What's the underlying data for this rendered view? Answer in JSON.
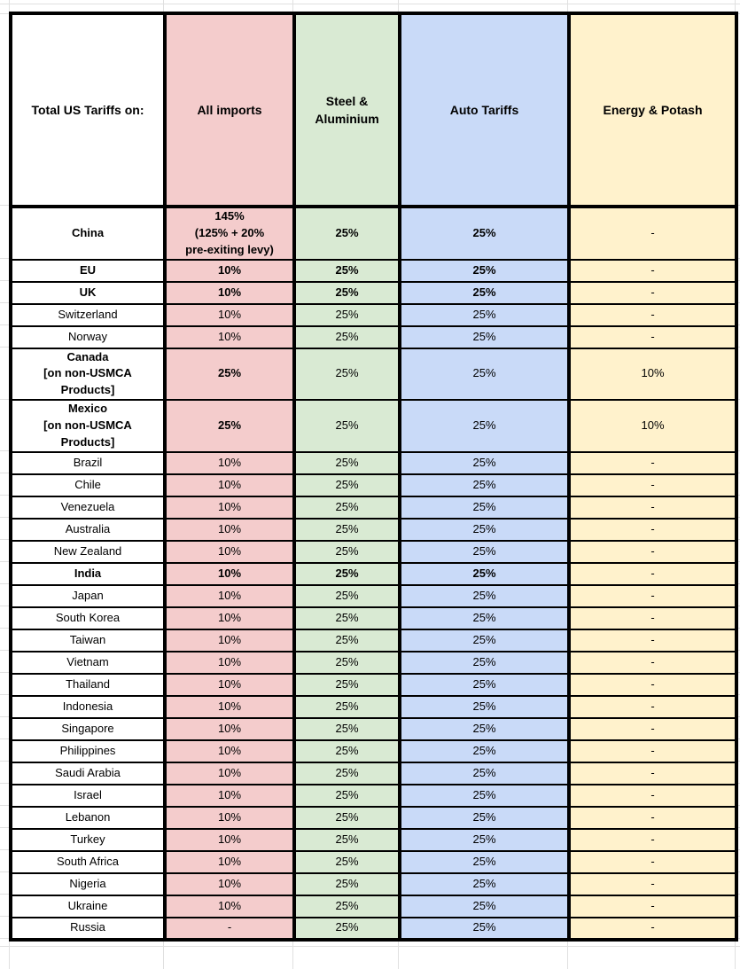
{
  "table": {
    "header": {
      "col0": "Total US Tariffs on:",
      "columns": [
        {
          "id": "all_imports",
          "label": "All imports",
          "color": "#f4cccc"
        },
        {
          "id": "steel",
          "label": "Steel & Aluminium",
          "color": "#d9ead3"
        },
        {
          "id": "auto",
          "label": "Auto Tariffs",
          "color": "#c9daf8"
        },
        {
          "id": "energy",
          "label": "Energy & Potash",
          "color": "#fff2cc"
        }
      ]
    },
    "rows": [
      {
        "country": "China",
        "all_imports": "145%\n(125% + 20%\npre-exiting levy)",
        "steel": "25%",
        "auto": "25%",
        "energy": "-",
        "bold_cols": [
          "country",
          "all_imports",
          "steel",
          "auto"
        ]
      },
      {
        "country": "EU",
        "all_imports": "10%",
        "steel": "25%",
        "auto": "25%",
        "energy": "-",
        "bold_cols": [
          "country",
          "all_imports",
          "steel",
          "auto"
        ]
      },
      {
        "country": "UK",
        "all_imports": "10%",
        "steel": "25%",
        "auto": "25%",
        "energy": "-",
        "bold_cols": [
          "country",
          "all_imports",
          "steel",
          "auto"
        ]
      },
      {
        "country": "Switzerland",
        "all_imports": "10%",
        "steel": "25%",
        "auto": "25%",
        "energy": "-",
        "bold_cols": []
      },
      {
        "country": "Norway",
        "all_imports": "10%",
        "steel": "25%",
        "auto": "25%",
        "energy": "-",
        "bold_cols": []
      },
      {
        "country": "Canada\n[on non-USMCA\nProducts]",
        "all_imports": "25%",
        "steel": "25%",
        "auto": "25%",
        "energy": "10%",
        "bold_cols": [
          "country",
          "all_imports"
        ]
      },
      {
        "country": "Mexico\n[on non-USMCA\nProducts]",
        "all_imports": "25%",
        "steel": "25%",
        "auto": "25%",
        "energy": "10%",
        "bold_cols": [
          "country",
          "all_imports"
        ]
      },
      {
        "country": "Brazil",
        "all_imports": "10%",
        "steel": "25%",
        "auto": "25%",
        "energy": "-",
        "bold_cols": []
      },
      {
        "country": "Chile",
        "all_imports": "10%",
        "steel": "25%",
        "auto": "25%",
        "energy": "-",
        "bold_cols": []
      },
      {
        "country": "Venezuela",
        "all_imports": "10%",
        "steel": "25%",
        "auto": "25%",
        "energy": "-",
        "bold_cols": []
      },
      {
        "country": "Australia",
        "all_imports": "10%",
        "steel": "25%",
        "auto": "25%",
        "energy": "-",
        "bold_cols": []
      },
      {
        "country": "New Zealand",
        "all_imports": "10%",
        "steel": "25%",
        "auto": "25%",
        "energy": "-",
        "bold_cols": []
      },
      {
        "country": "India",
        "all_imports": "10%",
        "steel": "25%",
        "auto": "25%",
        "energy": "-",
        "bold_cols": [
          "country",
          "all_imports",
          "steel",
          "auto"
        ]
      },
      {
        "country": "Japan",
        "all_imports": "10%",
        "steel": "25%",
        "auto": "25%",
        "energy": "-",
        "bold_cols": []
      },
      {
        "country": "South Korea",
        "all_imports": "10%",
        "steel": "25%",
        "auto": "25%",
        "energy": "-",
        "bold_cols": []
      },
      {
        "country": "Taiwan",
        "all_imports": "10%",
        "steel": "25%",
        "auto": "25%",
        "energy": "-",
        "bold_cols": []
      },
      {
        "country": "Vietnam",
        "all_imports": "10%",
        "steel": "25%",
        "auto": "25%",
        "energy": "-",
        "bold_cols": []
      },
      {
        "country": "Thailand",
        "all_imports": "10%",
        "steel": "25%",
        "auto": "25%",
        "energy": "-",
        "bold_cols": []
      },
      {
        "country": "Indonesia",
        "all_imports": "10%",
        "steel": "25%",
        "auto": "25%",
        "energy": "-",
        "bold_cols": []
      },
      {
        "country": "Singapore",
        "all_imports": "10%",
        "steel": "25%",
        "auto": "25%",
        "energy": "-",
        "bold_cols": []
      },
      {
        "country": "Philippines",
        "all_imports": "10%",
        "steel": "25%",
        "auto": "25%",
        "energy": "-",
        "bold_cols": []
      },
      {
        "country": "Saudi Arabia",
        "all_imports": "10%",
        "steel": "25%",
        "auto": "25%",
        "energy": "-",
        "bold_cols": []
      },
      {
        "country": "Israel",
        "all_imports": "10%",
        "steel": "25%",
        "auto": "25%",
        "energy": "-",
        "bold_cols": []
      },
      {
        "country": "Lebanon",
        "all_imports": "10%",
        "steel": "25%",
        "auto": "25%",
        "energy": "-",
        "bold_cols": []
      },
      {
        "country": "Turkey",
        "all_imports": "10%",
        "steel": "25%",
        "auto": "25%",
        "energy": "-",
        "bold_cols": []
      },
      {
        "country": "South Africa",
        "all_imports": "10%",
        "steel": "25%",
        "auto": "25%",
        "energy": "-",
        "bold_cols": []
      },
      {
        "country": "Nigeria",
        "all_imports": "10%",
        "steel": "25%",
        "auto": "25%",
        "energy": "-",
        "bold_cols": []
      },
      {
        "country": "Ukraine",
        "all_imports": "10%",
        "steel": "25%",
        "auto": "25%",
        "energy": "-",
        "bold_cols": []
      },
      {
        "country": "Russia",
        "all_imports": "-",
        "steel": "25%",
        "auto": "25%",
        "energy": "-",
        "bold_cols": []
      }
    ]
  },
  "colors": {
    "border": "#000000",
    "gridline": "#e0e0e0",
    "country_col_bg": "#ffffff",
    "all_imports_bg": "#f4cccc",
    "steel_bg": "#d9ead3",
    "auto_bg": "#c9daf8",
    "energy_bg": "#fff2cc"
  }
}
